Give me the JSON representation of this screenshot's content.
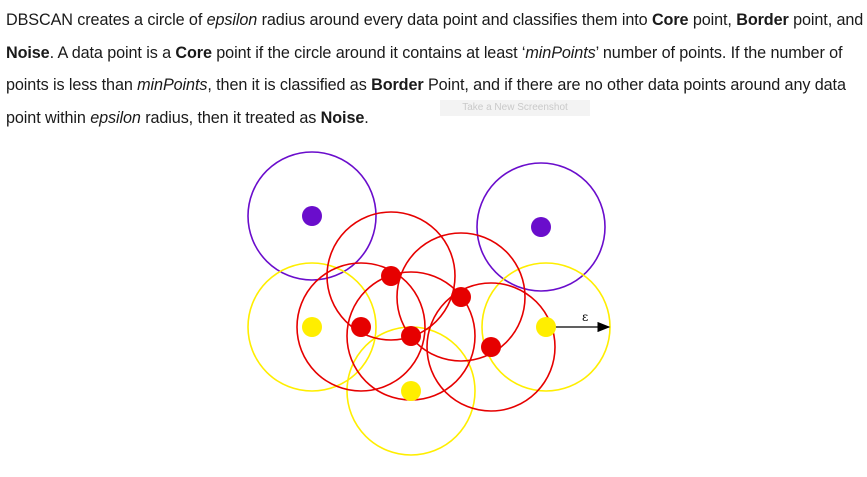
{
  "text": {
    "p1": "DBSCAN creates a circle of ",
    "p2": "epsilon",
    "p3": " radius around every data point and classifies them into ",
    "p4": "Core",
    "p5": " point, ",
    "p6": "Border",
    "p7": " point, and ",
    "p8": "Noise",
    "p9": ". A data point is a ",
    "p10": "Core",
    "p11": " point if the circle around it contains at least ‘",
    "p12": "minPoints",
    "p13": "’ number of points. If the number of points is less than ",
    "p14": "minPoints",
    "p15": ", then it is classified as ",
    "p16": "Border",
    "p17": " Point, and if there are no other data points around any data point within ",
    "p18": "epsilon",
    "p19": " radius, then it treated as ",
    "p20": "Noise",
    "p21": "."
  },
  "watermark": "Take a New Screenshot",
  "diagram": {
    "epsilon_label": "ε",
    "colors": {
      "noise": "#6a0dcc",
      "core": "#e60000",
      "border": "#ffee00"
    }
  }
}
